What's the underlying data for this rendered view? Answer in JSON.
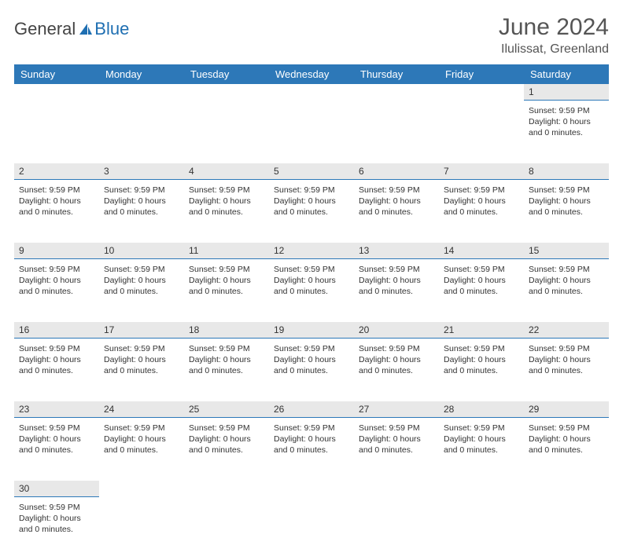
{
  "brand": {
    "part1": "General",
    "part2": "Blue"
  },
  "title": "June 2024",
  "subtitle": "Ilulissat, Greenland",
  "colors": {
    "header_bg": "#2d78b8",
    "header_text": "#ffffff",
    "daynum_bg": "#e8e8e8",
    "daynum_border": "#2d78b8",
    "body_text": "#333333",
    "title_text": "#555555",
    "logo_blue": "#1f6fb2",
    "page_bg": "#ffffff"
  },
  "typography": {
    "title_fontsize": 30,
    "subtitle_fontsize": 16,
    "header_fontsize": 13,
    "daynum_fontsize": 12,
    "content_fontsize": 10.5
  },
  "days_of_week": [
    "Sunday",
    "Monday",
    "Tuesday",
    "Wednesday",
    "Thursday",
    "Friday",
    "Saturday"
  ],
  "weeks": [
    [
      {
        "num": "",
        "content": ""
      },
      {
        "num": "",
        "content": ""
      },
      {
        "num": "",
        "content": ""
      },
      {
        "num": "",
        "content": ""
      },
      {
        "num": "",
        "content": ""
      },
      {
        "num": "",
        "content": ""
      },
      {
        "num": "1",
        "content": "Sunset: 9:59 PM Daylight: 0 hours and 0 minutes."
      }
    ],
    [
      {
        "num": "2",
        "content": "Sunset: 9:59 PM Daylight: 0 hours and 0 minutes."
      },
      {
        "num": "3",
        "content": "Sunset: 9:59 PM Daylight: 0 hours and 0 minutes."
      },
      {
        "num": "4",
        "content": "Sunset: 9:59 PM Daylight: 0 hours and 0 minutes."
      },
      {
        "num": "5",
        "content": "Sunset: 9:59 PM Daylight: 0 hours and 0 minutes."
      },
      {
        "num": "6",
        "content": "Sunset: 9:59 PM Daylight: 0 hours and 0 minutes."
      },
      {
        "num": "7",
        "content": "Sunset: 9:59 PM Daylight: 0 hours and 0 minutes."
      },
      {
        "num": "8",
        "content": "Sunset: 9:59 PM Daylight: 0 hours and 0 minutes."
      }
    ],
    [
      {
        "num": "9",
        "content": "Sunset: 9:59 PM Daylight: 0 hours and 0 minutes."
      },
      {
        "num": "10",
        "content": "Sunset: 9:59 PM Daylight: 0 hours and 0 minutes."
      },
      {
        "num": "11",
        "content": "Sunset: 9:59 PM Daylight: 0 hours and 0 minutes."
      },
      {
        "num": "12",
        "content": "Sunset: 9:59 PM Daylight: 0 hours and 0 minutes."
      },
      {
        "num": "13",
        "content": "Sunset: 9:59 PM Daylight: 0 hours and 0 minutes."
      },
      {
        "num": "14",
        "content": "Sunset: 9:59 PM Daylight: 0 hours and 0 minutes."
      },
      {
        "num": "15",
        "content": "Sunset: 9:59 PM Daylight: 0 hours and 0 minutes."
      }
    ],
    [
      {
        "num": "16",
        "content": "Sunset: 9:59 PM Daylight: 0 hours and 0 minutes."
      },
      {
        "num": "17",
        "content": "Sunset: 9:59 PM Daylight: 0 hours and 0 minutes."
      },
      {
        "num": "18",
        "content": "Sunset: 9:59 PM Daylight: 0 hours and 0 minutes."
      },
      {
        "num": "19",
        "content": "Sunset: 9:59 PM Daylight: 0 hours and 0 minutes."
      },
      {
        "num": "20",
        "content": "Sunset: 9:59 PM Daylight: 0 hours and 0 minutes."
      },
      {
        "num": "21",
        "content": "Sunset: 9:59 PM Daylight: 0 hours and 0 minutes."
      },
      {
        "num": "22",
        "content": "Sunset: 9:59 PM Daylight: 0 hours and 0 minutes."
      }
    ],
    [
      {
        "num": "23",
        "content": "Sunset: 9:59 PM Daylight: 0 hours and 0 minutes."
      },
      {
        "num": "24",
        "content": "Sunset: 9:59 PM Daylight: 0 hours and 0 minutes."
      },
      {
        "num": "25",
        "content": "Sunset: 9:59 PM Daylight: 0 hours and 0 minutes."
      },
      {
        "num": "26",
        "content": "Sunset: 9:59 PM Daylight: 0 hours and 0 minutes."
      },
      {
        "num": "27",
        "content": "Sunset: 9:59 PM Daylight: 0 hours and 0 minutes."
      },
      {
        "num": "28",
        "content": "Sunset: 9:59 PM Daylight: 0 hours and 0 minutes."
      },
      {
        "num": "29",
        "content": "Sunset: 9:59 PM Daylight: 0 hours and 0 minutes."
      }
    ],
    [
      {
        "num": "30",
        "content": "Sunset: 9:59 PM Daylight: 0 hours and 0 minutes."
      },
      {
        "num": "",
        "content": ""
      },
      {
        "num": "",
        "content": ""
      },
      {
        "num": "",
        "content": ""
      },
      {
        "num": "",
        "content": ""
      },
      {
        "num": "",
        "content": ""
      },
      {
        "num": "",
        "content": ""
      }
    ]
  ]
}
